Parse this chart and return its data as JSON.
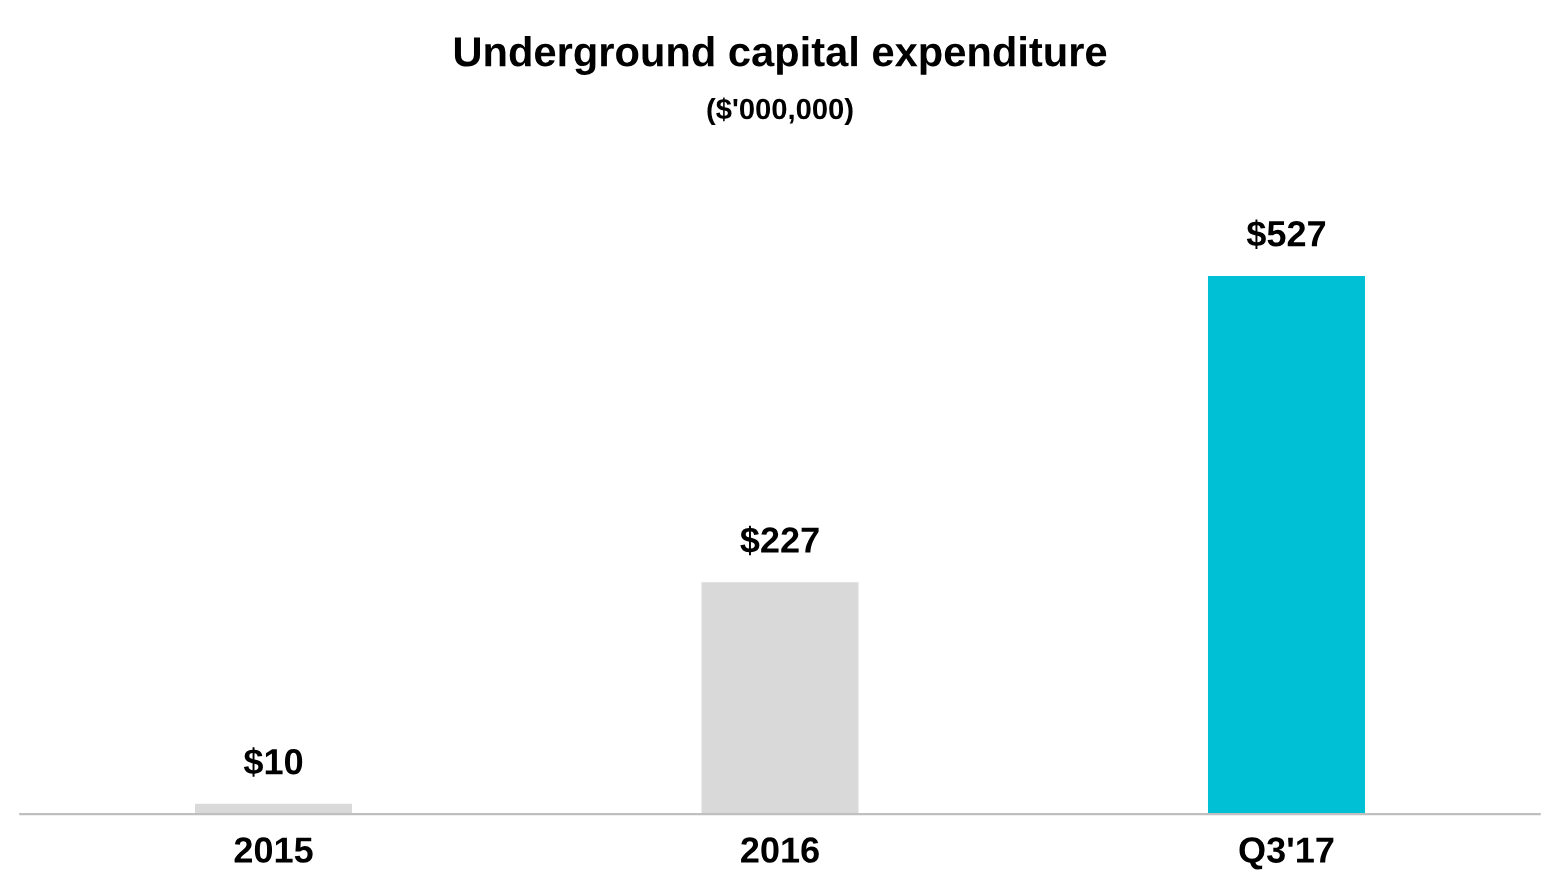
{
  "chart_data": {
    "type": "bar",
    "title": "Underground capital expenditure",
    "subtitle": "($'000,000)",
    "categories": [
      "2015",
      "2016",
      "Q3'17"
    ],
    "values": [
      10,
      227,
      527
    ],
    "colors": [
      "#d9d9d9",
      "#d9d9d9",
      "#00c0d6"
    ],
    "value_labels": [
      "$10",
      "$227",
      "$527"
    ]
  }
}
